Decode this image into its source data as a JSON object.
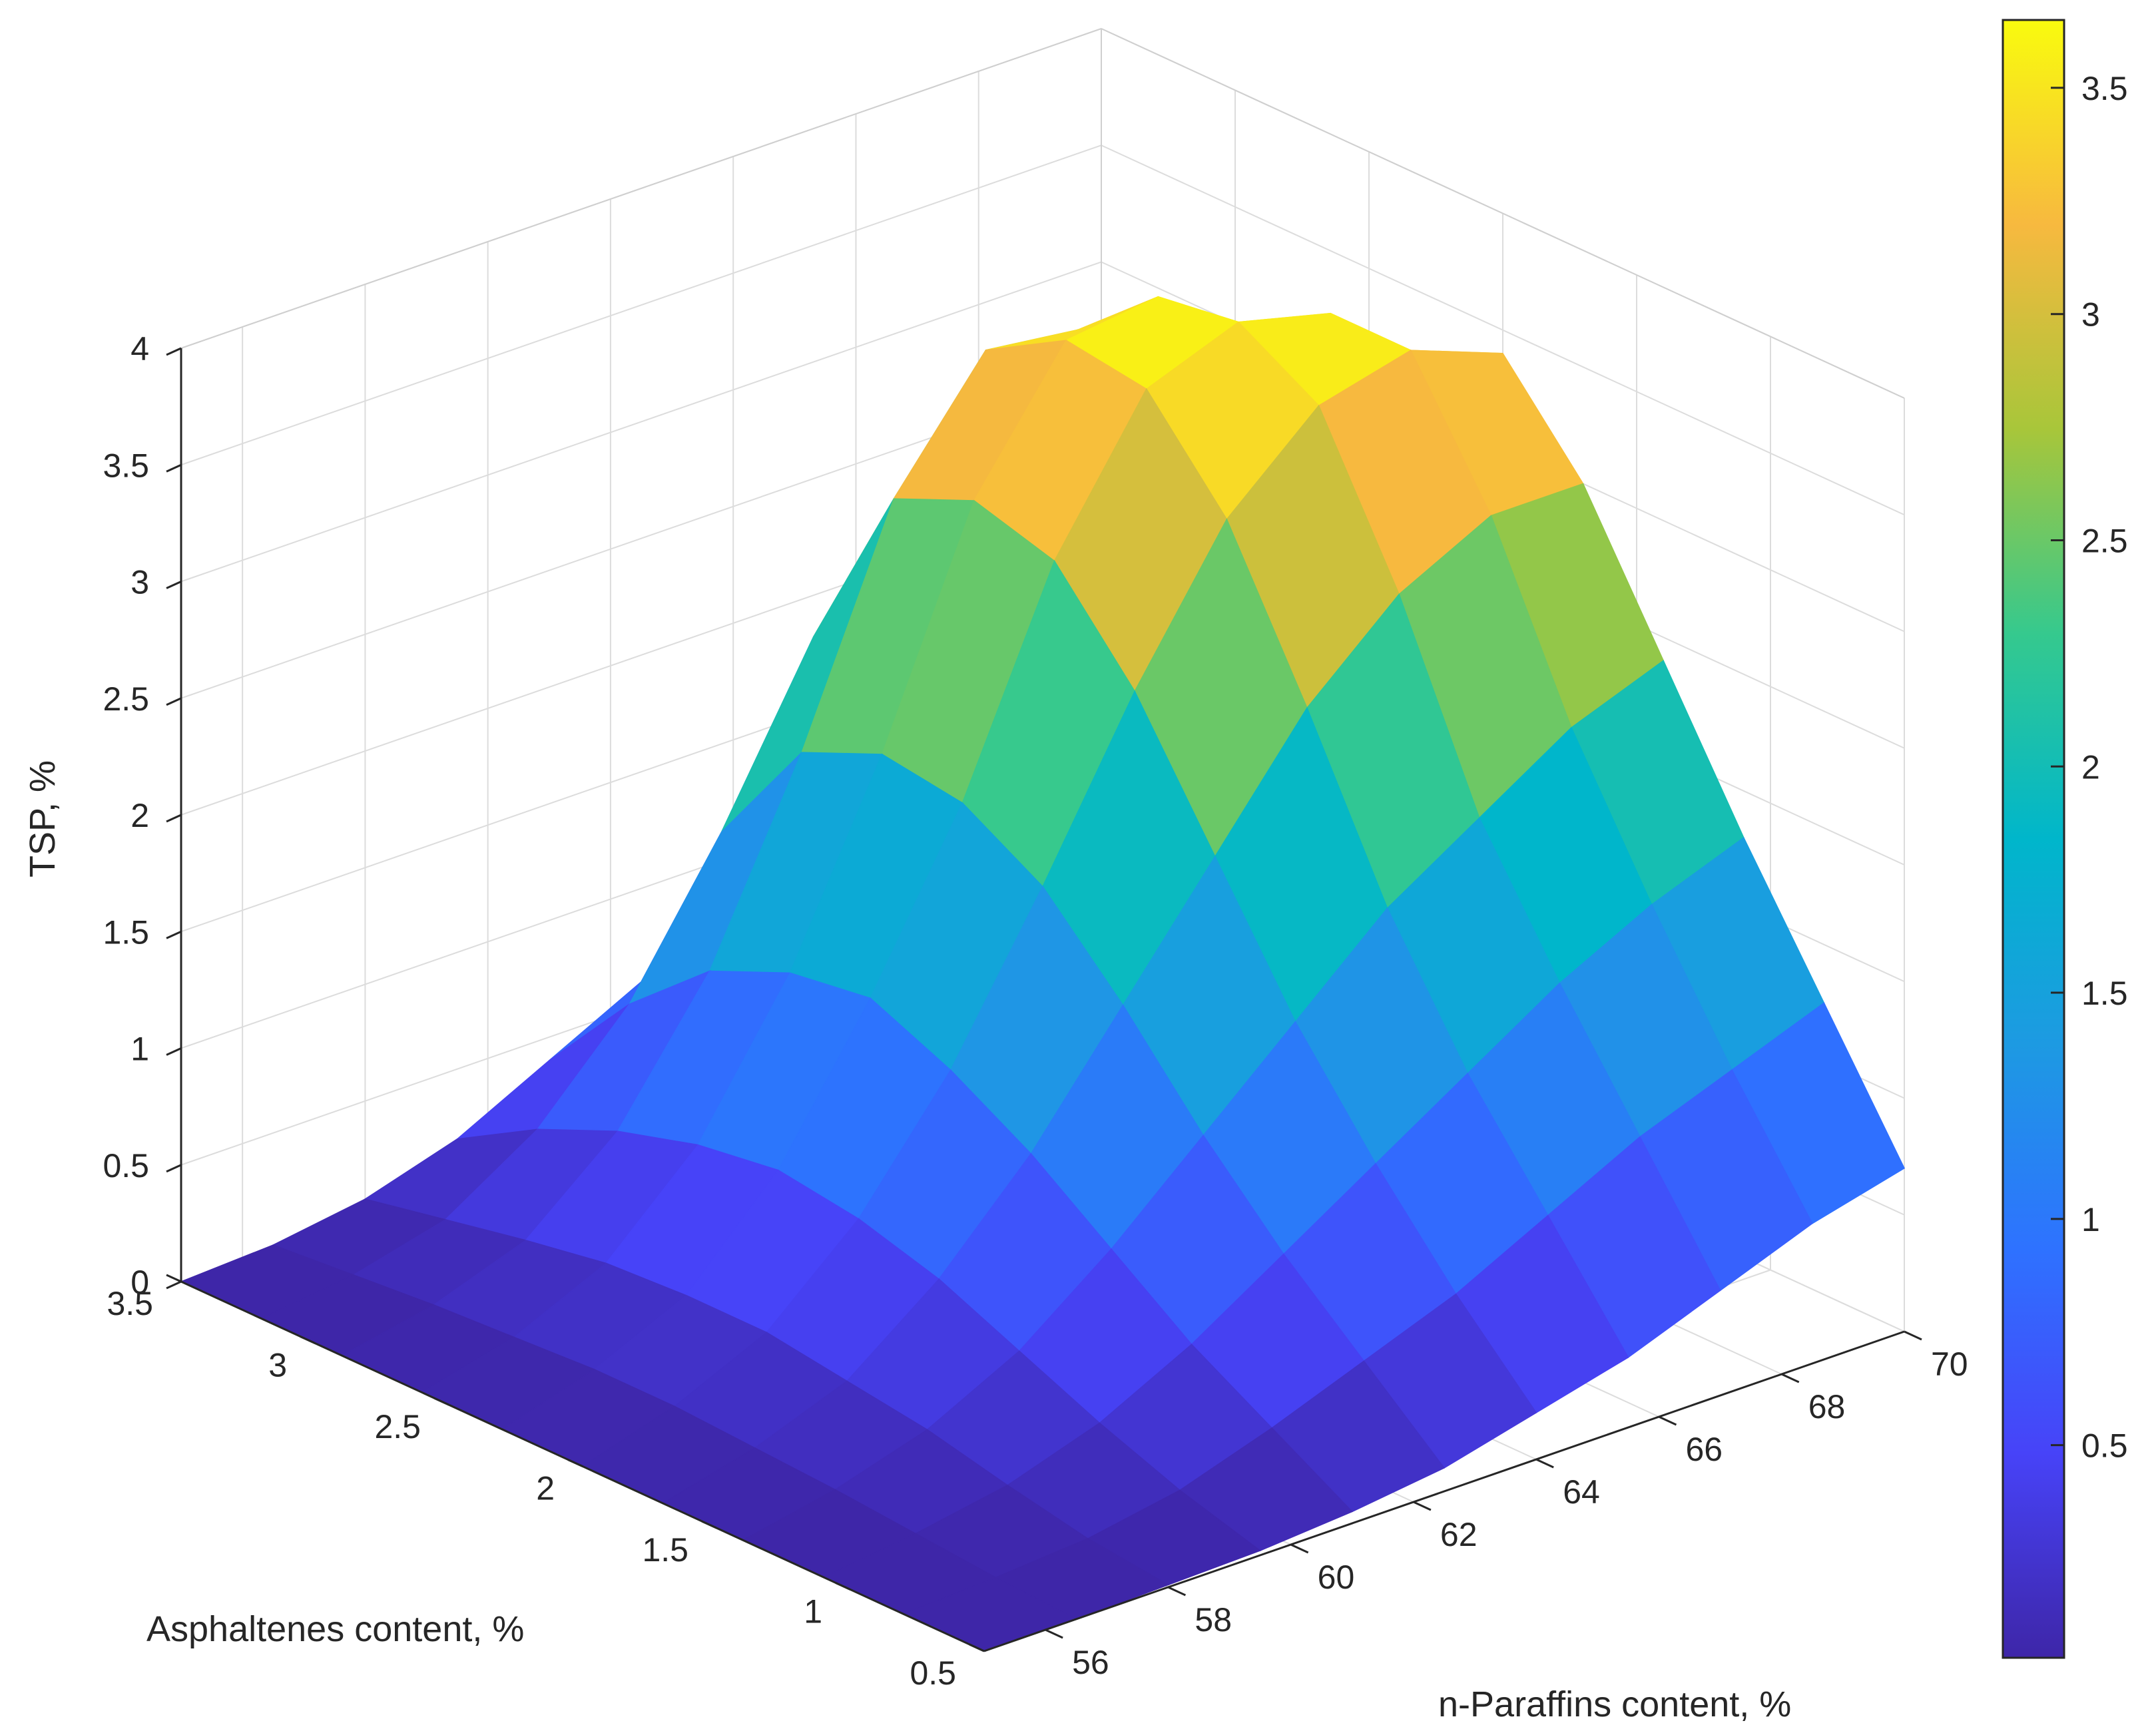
{
  "chart_data": {
    "type": "surface",
    "title": "",
    "xlabel": "n-Paraffins content, %",
    "ylabel": "Asphaltenes content, %",
    "zlabel": "TSP, %",
    "x": [
      55,
      56.5,
      58,
      59.5,
      61,
      62.5,
      64,
      65.5,
      67,
      68.5,
      70
    ],
    "y": [
      0.5,
      0.8,
      1.1,
      1.4,
      1.7,
      2.0,
      2.3,
      2.6,
      2.9,
      3.2,
      3.5
    ],
    "z": [
      [
        0.0,
        0.0,
        0.01,
        0.02,
        0.05,
        0.1,
        0.2,
        0.3,
        0.45,
        0.6,
        0.7
      ],
      [
        0.0,
        0.02,
        0.05,
        0.12,
        0.25,
        0.4,
        0.55,
        0.75,
        0.95,
        1.1,
        1.25
      ],
      [
        0.0,
        0.05,
        0.12,
        0.25,
        0.45,
        0.7,
        0.95,
        1.2,
        1.45,
        1.65,
        1.8
      ],
      [
        0.0,
        0.08,
        0.2,
        0.4,
        0.7,
        1.05,
        1.4,
        1.75,
        2.0,
        2.25,
        2.4
      ],
      [
        0.0,
        0.1,
        0.25,
        0.55,
        0.95,
        1.45,
        1.95,
        2.45,
        2.8,
        3.0,
        3.0
      ],
      [
        0.0,
        0.12,
        0.3,
        0.65,
        1.15,
        1.8,
        2.5,
        3.1,
        3.45,
        3.55,
        3.4
      ],
      [
        0.0,
        0.12,
        0.3,
        0.7,
        1.3,
        2.0,
        2.9,
        3.5,
        3.65,
        3.55,
        3.1
      ],
      [
        0.0,
        0.1,
        0.28,
        0.65,
        1.25,
        2.05,
        3.0,
        3.55,
        3.6,
        3.3,
        2.6
      ],
      [
        0.0,
        0.08,
        0.22,
        0.55,
        1.1,
        1.9,
        2.85,
        3.35,
        3.3,
        2.8,
        2.0
      ],
      [
        0.0,
        0.05,
        0.15,
        0.4,
        0.8,
        1.4,
        2.1,
        2.5,
        2.4,
        2.0,
        1.4
      ],
      [
        0.0,
        0.02,
        0.08,
        0.2,
        0.4,
        0.6,
        0.9,
        1.1,
        1.2,
        1.0,
        0.7
      ]
    ],
    "xlim": [
      55,
      70
    ],
    "ylim": [
      0.5,
      3.5
    ],
    "zlim": [
      0,
      4
    ],
    "x_ticks": [
      "56",
      "58",
      "60",
      "62",
      "64",
      "66",
      "68",
      "70"
    ],
    "y_ticks": [
      "0.5",
      "1",
      "1.5",
      "2",
      "2.5",
      "3",
      "3.5"
    ],
    "z_ticks": [
      "0",
      "0.5",
      "1",
      "1.5",
      "2",
      "2.5",
      "3",
      "3.5",
      "4"
    ],
    "colorbar": {
      "colormap": "parula",
      "ticks": [
        "0.5",
        "1",
        "1.5",
        "2",
        "2.5",
        "3",
        "3.5"
      ],
      "range": [
        0.03,
        3.65
      ]
    },
    "grid": true
  }
}
